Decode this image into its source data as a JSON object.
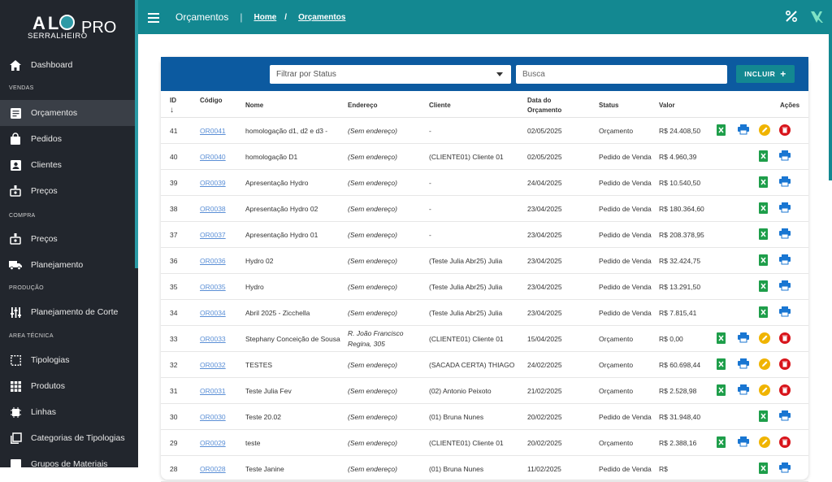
{
  "sidebar": {
    "logo": {
      "main": "AL",
      "sub": "SERRALHEIRO",
      "pro": "PRO"
    },
    "sections": {
      "vendas": "VENDAS",
      "compra": "COMPRA",
      "producao": "PRODUÇÃO",
      "area_tecnica": "AREA TÉCNICA"
    },
    "items": {
      "dashboard": "Dashboard",
      "orcamentos": "Orçamentos",
      "pedidos": "Pedidos",
      "clientes": "Clientes",
      "precos_vendas": "Preços",
      "precos_compra": "Preços",
      "planejamento": "Planejamento",
      "planejamento_corte": "Planejamento de Corte",
      "tipologias": "Tipologias",
      "produtos": "Produtos",
      "linhas": "Linhas",
      "categorias_tipologias": "Categorias de Tipologias",
      "grupos_materiais": "Grupos de Materiais"
    }
  },
  "topbar": {
    "title": "Orçamentos",
    "separator": "|",
    "crumb_home": "Home",
    "crumb_sep": "/",
    "crumb_current": "Orçamentos"
  },
  "filters": {
    "status_placeholder": "Filtrar por Status",
    "search_placeholder": "Busca",
    "incluir_label": "INCLUIR",
    "incluir_plus": "+"
  },
  "table": {
    "headers": {
      "id": "ID",
      "sort": "↓",
      "codigo": "Código",
      "nome": "Nome",
      "endereco": "Endereço",
      "cliente": "Cliente",
      "data": "Data do Orçamento",
      "status": "Status",
      "valor": "Valor",
      "acoes": "Ações"
    },
    "rows": [
      {
        "id": "41",
        "codigo": "OR0041",
        "nome": "homologação d1, d2 e d3 -",
        "endereco": "(Sem endereço)",
        "cliente": "-",
        "data": "02/05/2025",
        "status": "Orçamento",
        "valor": "R$ 24.408,50"
      },
      {
        "id": "40",
        "codigo": "OR0040",
        "nome": "homologação D1",
        "endereco": "(Sem endereço)",
        "cliente": "(CLIENTE01) Cliente 01",
        "data": "02/05/2025",
        "status": "Pedido de Venda",
        "valor": "R$ 4.960,39"
      },
      {
        "id": "39",
        "codigo": "OR0039",
        "nome": "Apresentação Hydro",
        "endereco": "(Sem endereço)",
        "cliente": "-",
        "data": "24/04/2025",
        "status": "Pedido de Venda",
        "valor": "R$ 10.540,50"
      },
      {
        "id": "38",
        "codigo": "OR0038",
        "nome": "Apresentação Hydro 02",
        "endereco": "(Sem endereço)",
        "cliente": "-",
        "data": "23/04/2025",
        "status": "Pedido de Venda",
        "valor": "R$ 180.364,60"
      },
      {
        "id": "37",
        "codigo": "OR0037",
        "nome": "Apresentação Hydro 01",
        "endereco": "(Sem endereço)",
        "cliente": "-",
        "data": "23/04/2025",
        "status": "Pedido de Venda",
        "valor": "R$ 208.378,95"
      },
      {
        "id": "36",
        "codigo": "OR0036",
        "nome": "Hydro 02",
        "endereco": "(Sem endereço)",
        "cliente": "(Teste Julia Abr25) Julia",
        "data": "23/04/2025",
        "status": "Pedido de Venda",
        "valor": "R$ 32.424,75"
      },
      {
        "id": "35",
        "codigo": "OR0035",
        "nome": "Hydro",
        "endereco": "(Sem endereço)",
        "cliente": "(Teste Julia Abr25) Julia",
        "data": "23/04/2025",
        "status": "Pedido de Venda",
        "valor": "R$ 13.291,50"
      },
      {
        "id": "34",
        "codigo": "OR0034",
        "nome": "Abril 2025 - Zicchella",
        "endereco": "(Sem endereço)",
        "cliente": "(Teste Julia Abr25) Julia",
        "data": "23/04/2025",
        "status": "Pedido de Venda",
        "valor": "R$ 7.815,41"
      },
      {
        "id": "33",
        "codigo": "OR0033",
        "nome": "Stephany Conceição de Sousa",
        "endereco": "R. João Francisco Regina, 305",
        "cliente": "(CLIENTE01) Cliente 01",
        "data": "15/04/2025",
        "status": "Orçamento",
        "valor": "R$ 0,00"
      },
      {
        "id": "32",
        "codigo": "OR0032",
        "nome": "TESTES",
        "endereco": "(Sem endereço)",
        "cliente": "(SACADA CERTA) THIAGO",
        "data": "24/02/2025",
        "status": "Orçamento",
        "valor": "R$ 60.698,44"
      },
      {
        "id": "31",
        "codigo": "OR0031",
        "nome": "Teste Julia Fev",
        "endereco": "(Sem endereço)",
        "cliente": "(02) Antonio Peixoto",
        "data": "21/02/2025",
        "status": "Orçamento",
        "valor": "R$ 2.528,98"
      },
      {
        "id": "30",
        "codigo": "OR0030",
        "nome": "Teste 20.02",
        "endereco": "(Sem endereço)",
        "cliente": "(01) Bruna Nunes",
        "data": "20/02/2025",
        "status": "Pedido de Venda",
        "valor": "R$ 31.948,40"
      },
      {
        "id": "29",
        "codigo": "OR0029",
        "nome": "teste",
        "endereco": "(Sem endereço)",
        "cliente": "(CLIENTE01) Cliente 01",
        "data": "20/02/2025",
        "status": "Orçamento",
        "valor": "R$ 2.388,16"
      },
      {
        "id": "28",
        "codigo": "OR0028",
        "nome": "Teste Janine",
        "endereco": "(Sem endereço)",
        "cliente": "(01) Bruna Nunes",
        "data": "11/02/2025",
        "status": "Pedido de Venda",
        "valor": "R$"
      }
    ]
  },
  "colors": {
    "sidebar": "#22262d",
    "topbar": "#138891",
    "card_header": "#0c5aa0",
    "link": "#5b8fd6",
    "excel": "#1e9e4a",
    "print": "#1976d2",
    "edit": "#f0b400",
    "delete": "#d8141b"
  }
}
